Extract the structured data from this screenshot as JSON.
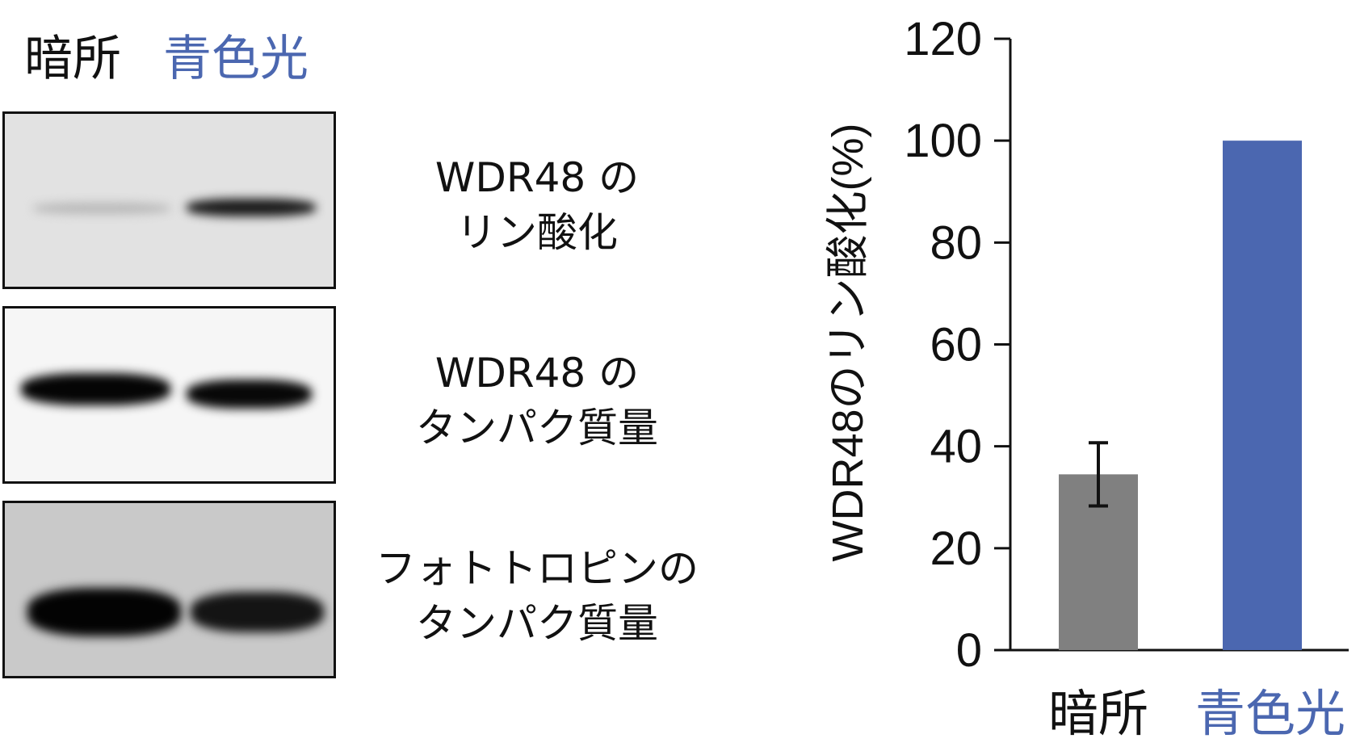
{
  "blot": {
    "lane_labels": [
      {
        "text": "暗所",
        "color": "#111111"
      },
      {
        "text": "青色光",
        "color": "#4b67b0"
      }
    ],
    "panels": [
      {
        "label_lines": [
          "WDR48 の",
          "リン酸化"
        ]
      },
      {
        "label_lines": [
          "WDR48 の",
          "タンパク質量"
        ]
      },
      {
        "label_lines": [
          "フォトトロピンの",
          "タンパク質量"
        ]
      }
    ]
  },
  "chart_data": {
    "type": "bar",
    "title": "",
    "xlabel": "",
    "ylabel": "WDR48のリン酸化(%)",
    "categories": [
      "暗所",
      "青色光"
    ],
    "category_colors": [
      "#111111",
      "#4b67b0"
    ],
    "values": [
      34.5,
      100
    ],
    "errors": [
      6.2,
      null
    ],
    "bar_colors": [
      "#808080",
      "#4b67b0"
    ],
    "ylim": [
      0,
      120
    ],
    "yticks": [
      0,
      20,
      40,
      60,
      80,
      100,
      120
    ],
    "grid": false
  }
}
